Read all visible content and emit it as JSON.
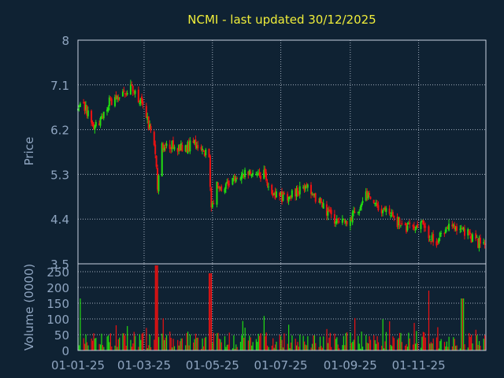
{
  "chart_data": [
    {
      "type": "candlestick",
      "title": "NCMI - last updated 30/12/2025",
      "ylabel": "Price",
      "ylim": [
        3.5,
        8
      ],
      "yticks": [
        "8",
        "7.1",
        "6.2",
        "5.3",
        "4.4",
        "3.5"
      ],
      "xticks": [
        "01-01-25",
        "01-03-25",
        "01-05-25",
        "01-07-25",
        "01-09-25",
        "01-11-25"
      ],
      "grid": true,
      "up_color": "#22dd11",
      "down_color": "#ee1111",
      "close_trend": [
        [
          "2025-01-01",
          6.6
        ],
        [
          "2025-01-08",
          6.65
        ],
        [
          "2025-01-15",
          6.2
        ],
        [
          "2025-01-22",
          6.4
        ],
        [
          "2025-01-29",
          6.75
        ],
        [
          "2025-02-05",
          6.8
        ],
        [
          "2025-02-12",
          7.0
        ],
        [
          "2025-02-19",
          7.05
        ],
        [
          "2025-02-26",
          6.75
        ],
        [
          "2025-03-05",
          6.3
        ],
        [
          "2025-03-10",
          6.0
        ],
        [
          "2025-03-13",
          5.1
        ],
        [
          "2025-03-17",
          5.9
        ],
        [
          "2025-03-24",
          5.9
        ],
        [
          "2025-03-31",
          5.8
        ],
        [
          "2025-04-07",
          5.85
        ],
        [
          "2025-04-14",
          5.9
        ],
        [
          "2025-04-21",
          5.85
        ],
        [
          "2025-04-28",
          5.6
        ],
        [
          "2025-04-30",
          4.6
        ],
        [
          "2025-05-05",
          5.1
        ],
        [
          "2025-05-12",
          5.05
        ],
        [
          "2025-05-19",
          5.2
        ],
        [
          "2025-05-26",
          5.3
        ],
        [
          "2025-06-02",
          5.35
        ],
        [
          "2025-06-09",
          5.3
        ],
        [
          "2025-06-16",
          5.3
        ],
        [
          "2025-06-23",
          4.95
        ],
        [
          "2025-06-30",
          4.85
        ],
        [
          "2025-07-07",
          4.85
        ],
        [
          "2025-07-14",
          4.95
        ],
        [
          "2025-07-21",
          5.05
        ],
        [
          "2025-07-28",
          4.95
        ],
        [
          "2025-08-04",
          4.75
        ],
        [
          "2025-08-11",
          4.55
        ],
        [
          "2025-08-18",
          4.4
        ],
        [
          "2025-08-25",
          4.3
        ],
        [
          "2025-09-01",
          4.45
        ],
        [
          "2025-09-08",
          4.6
        ],
        [
          "2025-09-15",
          4.95
        ],
        [
          "2025-09-22",
          4.8
        ],
        [
          "2025-09-29",
          4.6
        ],
        [
          "2025-10-06",
          4.45
        ],
        [
          "2025-10-13",
          4.35
        ],
        [
          "2025-10-20",
          4.25
        ],
        [
          "2025-10-27",
          4.2
        ],
        [
          "2025-11-03",
          4.3
        ],
        [
          "2025-11-10",
          4.05
        ],
        [
          "2025-11-17",
          3.95
        ],
        [
          "2025-11-24",
          4.2
        ],
        [
          "2025-12-01",
          4.3
        ],
        [
          "2025-12-08",
          4.2
        ],
        [
          "2025-12-15",
          4.1
        ],
        [
          "2025-12-22",
          3.95
        ],
        [
          "2025-12-30",
          3.85
        ]
      ]
    },
    {
      "type": "bar",
      "ylabel": "Volume (0000)",
      "ylim": [
        0,
        275
      ],
      "yticks": [
        "250",
        "200",
        "150",
        "100",
        "50",
        "0"
      ],
      "xticks": [
        "01-01-25",
        "01-03-25",
        "01-05-25",
        "01-07-25",
        "01-09-25",
        "01-11-25"
      ],
      "notable_volume_spikes": [
        [
          "2025-01-04",
          165
        ],
        [
          "2025-03-12",
          270
        ],
        [
          "2025-04-29",
          245
        ],
        [
          "2025-11-09",
          190
        ],
        [
          "2025-12-10",
          165
        ]
      ],
      "typical_volume_range": [
        5,
        60
      ]
    }
  ]
}
